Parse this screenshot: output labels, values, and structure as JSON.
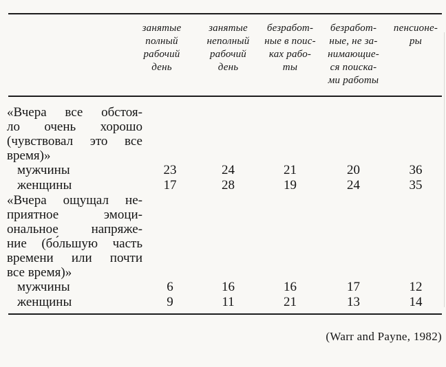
{
  "page": {
    "type": "scanned-book-table",
    "colors": {
      "background": "#f9f8f5",
      "rule": "#1c1c1c",
      "text": "#151515"
    }
  },
  "table": {
    "columns": [
      {
        "label": "занятые\nполный\nрабочий\nдень"
      },
      {
        "label": "занятые\nнеполный\nрабочий\nдень"
      },
      {
        "label": "безработ-\nные в поис-\nках рабо-\nты"
      },
      {
        "label": "безработ-\nные, не за-\nнимающие-\nся поиска-\nми работы"
      },
      {
        "label": "пенсионе-\nры"
      }
    ],
    "blocks": [
      {
        "quote_lines": [
          "«Вчера все обстоя-",
          "ло очень хорошо",
          "(чувствовал это все",
          "время)»"
        ],
        "rows": [
          {
            "label": "мужчины",
            "values": [
              "23",
              "24",
              "21",
              "20",
              "36"
            ]
          },
          {
            "label": "женщины",
            "values": [
              "17",
              "28",
              "19",
              "24",
              "35"
            ]
          }
        ]
      },
      {
        "quote_lines": [
          "«Вчера ощущал не-",
          "приятное эмоци-",
          "ональное напряже-",
          "ние (бо́льшую часть",
          "времени или почти",
          "все время)»"
        ],
        "rows": [
          {
            "label": "мужчины",
            "values": [
              "6",
              "16",
              "16",
              "17",
              "12"
            ]
          },
          {
            "label": "женщины",
            "values": [
              "9",
              "11",
              "21",
              "13",
              "14"
            ]
          }
        ]
      }
    ]
  },
  "citation": "(Warr and Payne, 1982)",
  "chart_data": {
    "type": "table",
    "title": "",
    "columns": [
      "занятые полный рабочий день",
      "занятые неполный рабочий день",
      "безработные в поисках работы",
      "безработные, не занимающиеся поисками работы",
      "пенсионеры"
    ],
    "row_groups": [
      {
        "group": "«Вчера все обстояло очень хорошо (чувствовал это все время)»",
        "rows": [
          {
            "label": "мужчины",
            "values": [
              23,
              24,
              21,
              20,
              36
            ]
          },
          {
            "label": "женщины",
            "values": [
              17,
              28,
              19,
              24,
              35
            ]
          }
        ]
      },
      {
        "group": "«Вчера ощущал неприятное эмоциональное напряжение (бо́льшую часть времени или почти все время)»",
        "rows": [
          {
            "label": "мужчины",
            "values": [
              6,
              16,
              16,
              17,
              12
            ]
          },
          {
            "label": "женщины",
            "values": [
              9,
              11,
              21,
              13,
              14
            ]
          }
        ]
      }
    ],
    "source": "(Warr and Payne, 1982)"
  }
}
